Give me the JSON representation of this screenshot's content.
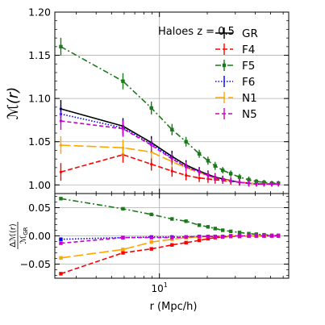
{
  "chart_data": [
    {
      "type": "line",
      "annotation": "Haloes z = 0.5",
      "ylabel": "ℳ(r)",
      "xscale": "log",
      "xlim": [
        2.2,
        65
      ],
      "ylim": [
        0.99,
        1.2
      ],
      "yticks": [
        1.0,
        1.05,
        1.1,
        1.15,
        1.2
      ],
      "ytick_labels": [
        "1.00",
        "1.05",
        "1.10",
        "1.15",
        "1.20"
      ],
      "grid": true,
      "legend_position": "top-right",
      "x": [
        2.4,
        5.9,
        8.9,
        12.0,
        14.7,
        17.8,
        20.2,
        22.4,
        25.0,
        28.1,
        31.9,
        36.5,
        40.7,
        45.5,
        50.9,
        56.0
      ],
      "series": [
        {
          "name": "GR",
          "color": "#000000",
          "dash": "",
          "marker": "none",
          "values": [
            1.088,
            1.068,
            1.049,
            1.033,
            1.023,
            1.016,
            1.012,
            1.009,
            1.007,
            1.005,
            1.003,
            1.002,
            1.001,
            1.001,
            1.001,
            1.001
          ]
        },
        {
          "name": "F4",
          "color": "#ff0000",
          "dash": "6,3",
          "marker": "none",
          "values": [
            1.015,
            1.035,
            1.024,
            1.016,
            1.011,
            1.008,
            1.007,
            1.006,
            1.005,
            1.004,
            1.003,
            1.002,
            1.001,
            1.001,
            1.001,
            1.001
          ]
        },
        {
          "name": "F5",
          "color": "#1a7a1a",
          "dash": "7,3,2,3",
          "marker": "square",
          "values": [
            1.16,
            1.12,
            1.089,
            1.064,
            1.05,
            1.036,
            1.028,
            1.022,
            1.017,
            1.013,
            1.009,
            1.006,
            1.004,
            1.003,
            1.002,
            1.002
          ]
        },
        {
          "name": "F6",
          "color": "#0000ff",
          "dash": "1.5,2",
          "marker": "none",
          "values": [
            1.082,
            1.066,
            1.047,
            1.031,
            1.021,
            1.015,
            1.011,
            1.008,
            1.006,
            1.005,
            1.003,
            1.002,
            1.001,
            1.001,
            1.001,
            1.001
          ]
        },
        {
          "name": "N1",
          "color": "#ffa500",
          "dash": "12,4",
          "marker": "none",
          "values": [
            1.046,
            1.043,
            1.038,
            1.027,
            1.02,
            1.014,
            1.011,
            1.008,
            1.006,
            1.005,
            1.003,
            1.002,
            1.001,
            1.001,
            1.001,
            1.001
          ]
        },
        {
          "name": "N5",
          "color": "#cc00cc",
          "dash": "5,3",
          "marker": "none",
          "values": [
            1.074,
            1.065,
            1.046,
            1.03,
            1.021,
            1.015,
            1.011,
            1.008,
            1.006,
            1.005,
            1.003,
            1.002,
            1.001,
            1.001,
            1.001,
            1.001
          ]
        }
      ]
    },
    {
      "type": "line",
      "xlabel": "r (Mpc/h)",
      "ylabel_num": "Δℳ(r)",
      "ylabel_den": "ℳ",
      "ylabel_sub": "GR",
      "xscale": "log",
      "xlim": [
        2.2,
        65
      ],
      "ylim": [
        -0.075,
        0.075
      ],
      "yticks": [
        -0.05,
        0.0,
        0.05
      ],
      "ytick_labels": [
        "−0.05",
        "0.00",
        "0.05"
      ],
      "xtick_label": "10",
      "xtick_label_exp": "1",
      "grid": true,
      "x": [
        2.4,
        5.9,
        8.9,
        12.0,
        14.7,
        17.8,
        20.2,
        22.4,
        25.0,
        28.1,
        31.9,
        36.5,
        40.7,
        45.5,
        50.9,
        56.0
      ],
      "series": [
        {
          "color": "#ff0000",
          "dash": "6,3",
          "marker": "square",
          "values": [
            -0.067,
            -0.03,
            -0.023,
            -0.016,
            -0.012,
            -0.008,
            -0.005,
            -0.003,
            -0.002,
            -0.001,
            -0.001,
            0.0,
            0.0,
            0.0,
            0.0,
            0.0
          ]
        },
        {
          "color": "#1a7a1a",
          "dash": "7,3,2,3",
          "marker": "square",
          "values": [
            0.066,
            0.048,
            0.038,
            0.03,
            0.026,
            0.019,
            0.016,
            0.013,
            0.01,
            0.008,
            0.006,
            0.004,
            0.003,
            0.002,
            0.001,
            0.001
          ]
        },
        {
          "color": "#0000ff",
          "dash": "1.5,2",
          "marker": "square",
          "values": [
            -0.006,
            -0.003,
            -0.002,
            -0.002,
            -0.002,
            -0.001,
            -0.001,
            -0.001,
            -0.001,
            0.0,
            0.0,
            0.0,
            0.0,
            0.0,
            0.0,
            0.0
          ]
        },
        {
          "color": "#ffa500",
          "dash": "12,4",
          "marker": "square",
          "values": [
            -0.039,
            -0.024,
            -0.011,
            -0.006,
            -0.003,
            -0.002,
            -0.001,
            -0.001,
            -0.001,
            0.0,
            0.0,
            0.0,
            0.0,
            0.0,
            0.0,
            0.0
          ]
        },
        {
          "color": "#cc00cc",
          "dash": "5,3",
          "marker": "square",
          "values": [
            -0.013,
            -0.003,
            -0.003,
            -0.003,
            -0.002,
            -0.001,
            -0.001,
            -0.001,
            -0.001,
            0.0,
            0.0,
            0.0,
            0.0,
            0.0,
            0.0,
            0.0
          ]
        }
      ]
    }
  ]
}
